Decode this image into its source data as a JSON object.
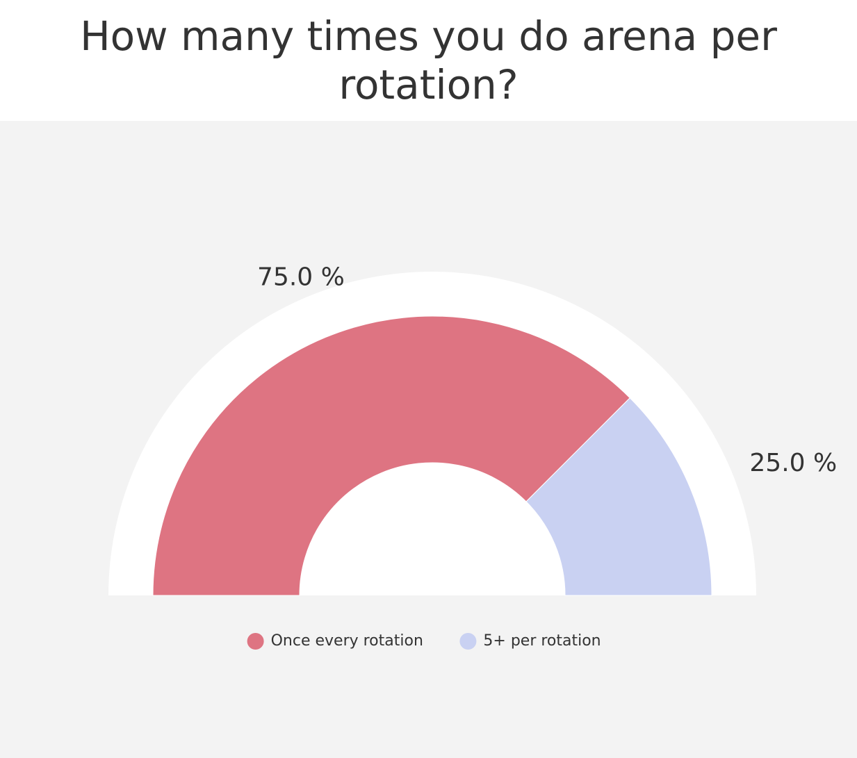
{
  "chart_data": {
    "type": "pie",
    "variant": "semi-donut",
    "title": "How many times you do arena per rotation?",
    "slices": [
      {
        "label": "Once every rotation",
        "value": 75.0,
        "value_label": "75.0 %",
        "color": "#de7482"
      },
      {
        "label": "5+ per rotation",
        "value": 25.0,
        "value_label": "25.0 %",
        "color": "#c9d1f2"
      }
    ],
    "legend_position": "bottom-center",
    "background_color": "#f3f3f3",
    "track_color": "#ffffff"
  }
}
